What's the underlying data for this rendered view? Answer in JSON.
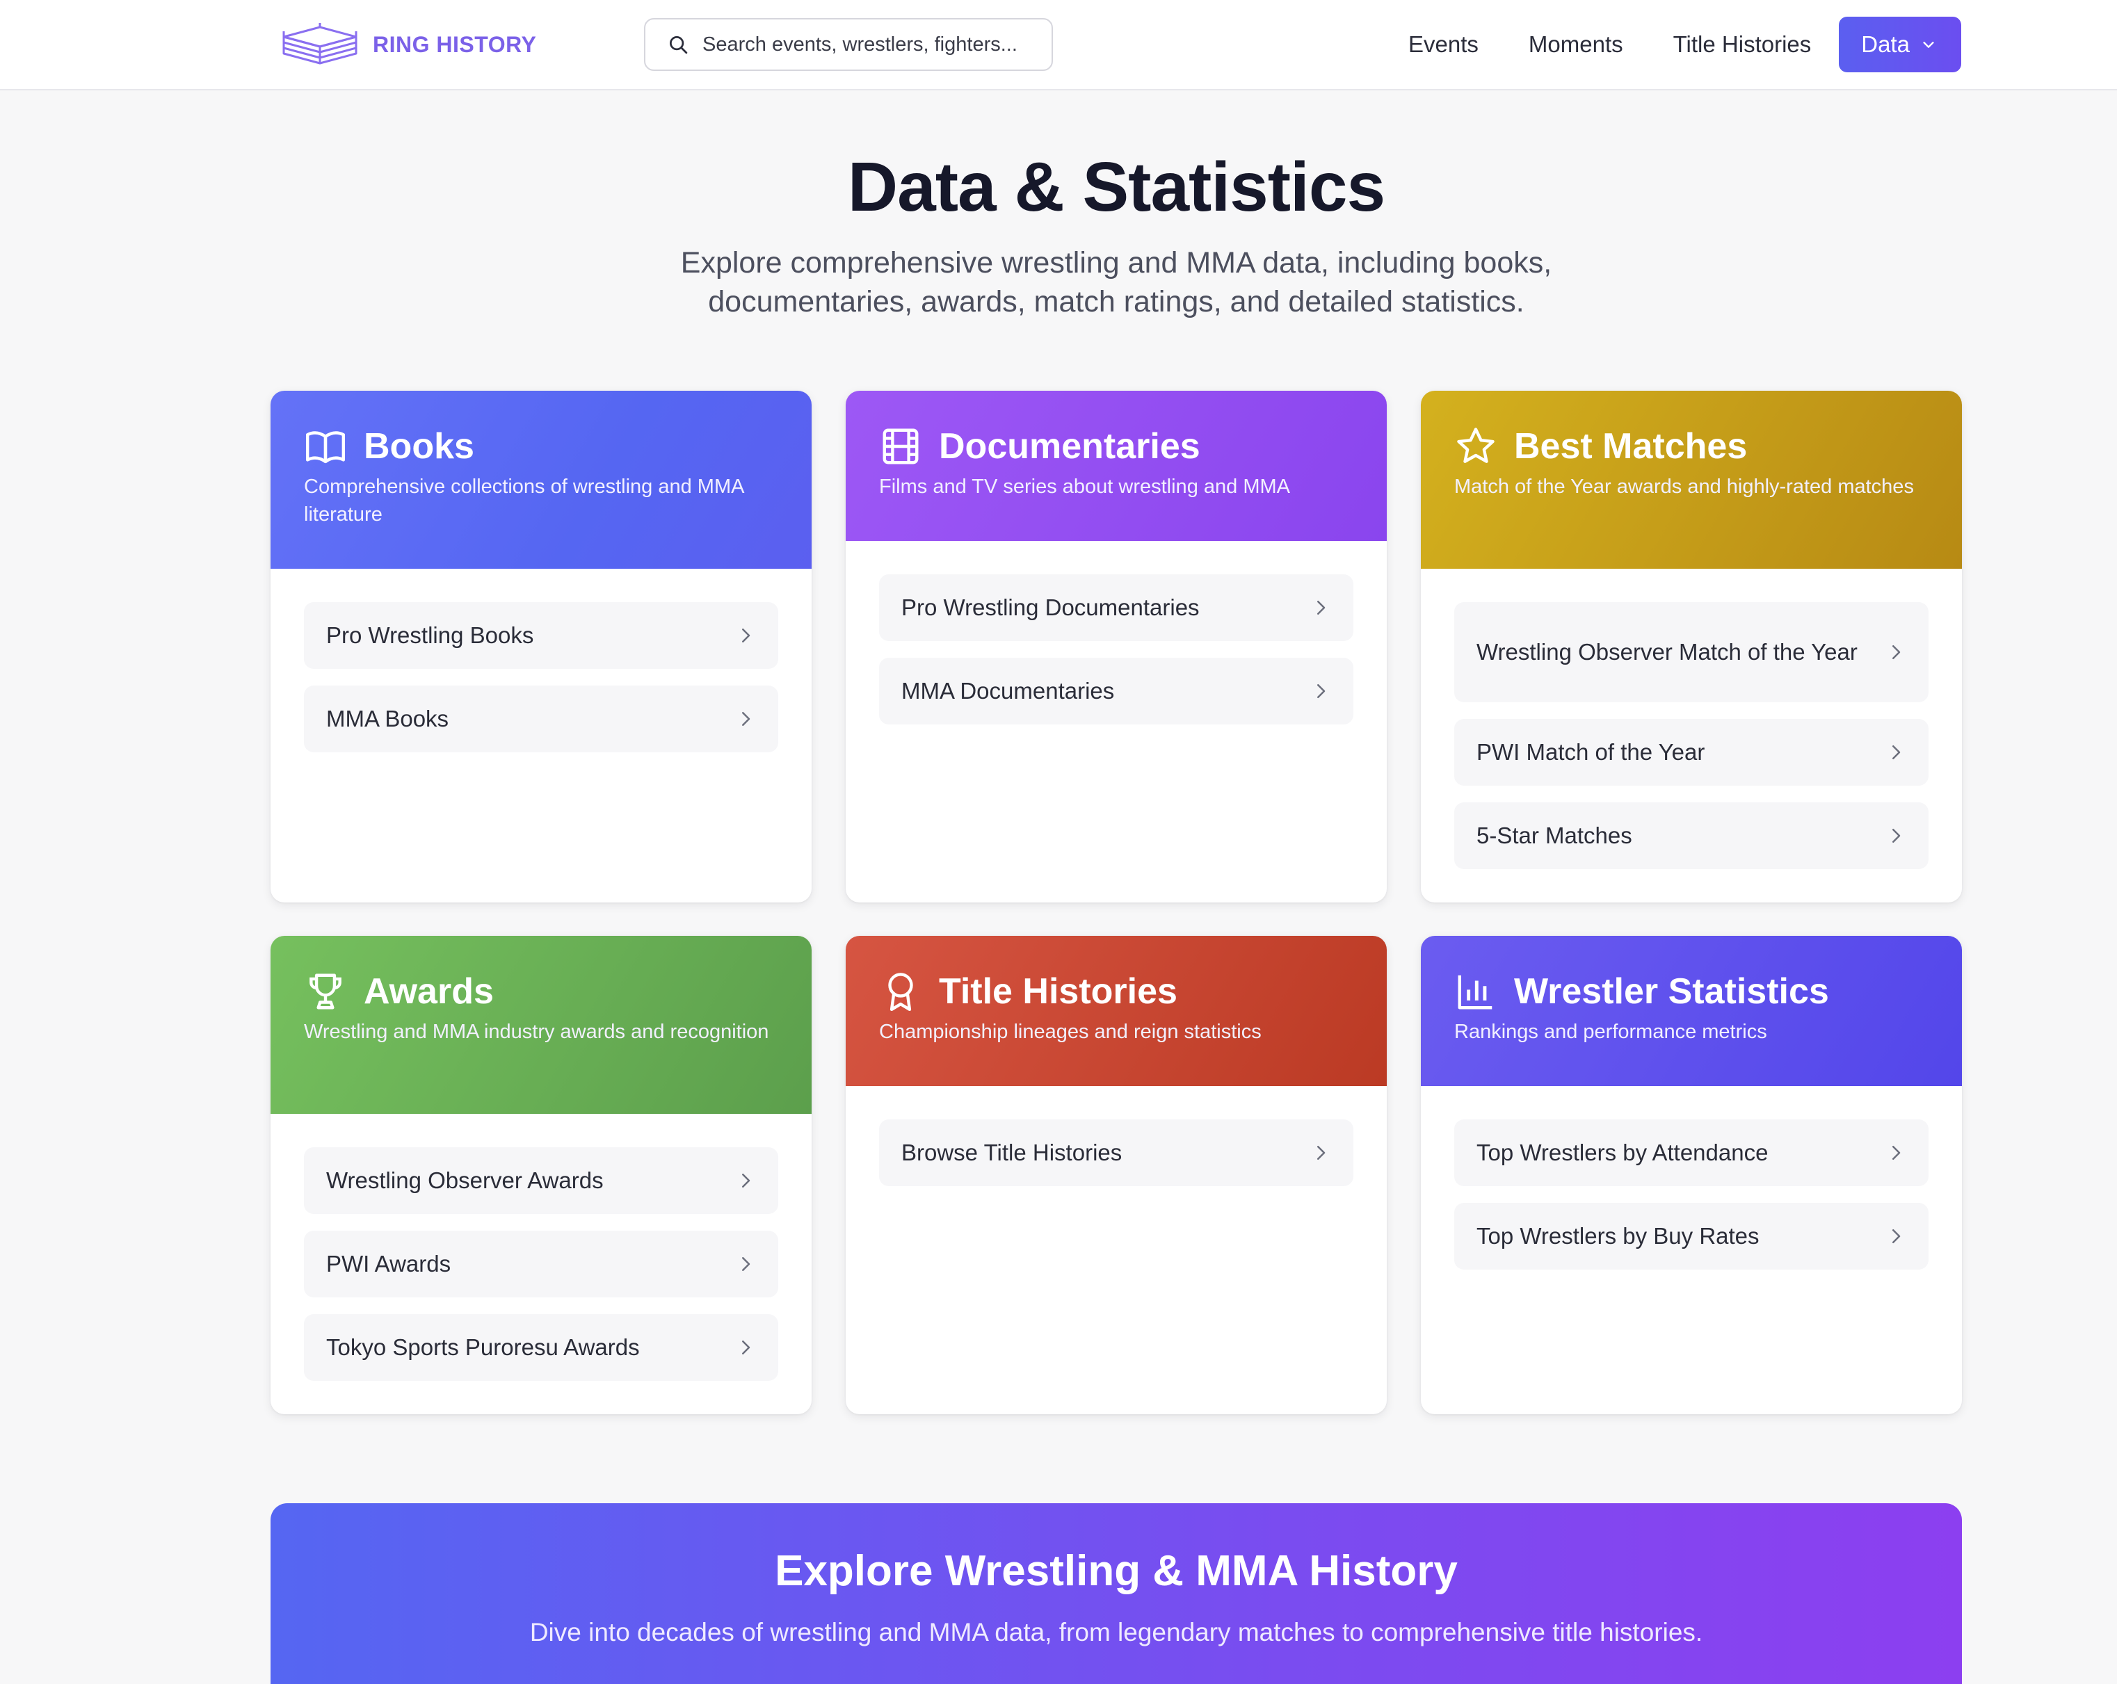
{
  "header": {
    "brand": "RING HISTORY",
    "search_placeholder": "Search events, wrestlers, fighters...",
    "nav": [
      "Events",
      "Moments",
      "Title Histories"
    ],
    "data_button": "Data"
  },
  "hero": {
    "title": "Data & Statistics",
    "subtitle": "Explore comprehensive wrestling and MMA data, including books, documentaries, awards, match ratings, and detailed statistics."
  },
  "cards": [
    {
      "title": "Books",
      "icon": "book-icon",
      "color": "#5b6cf3",
      "description": "Comprehensive collections of wrestling and MMA literature",
      "items": [
        "Pro Wrestling Books",
        "MMA Books"
      ]
    },
    {
      "title": "Documentaries",
      "icon": "film-icon",
      "color": "#9650f3",
      "description": "Films and TV series about wrestling and MMA",
      "items": [
        "Pro Wrestling Documentaries",
        "MMA Documentaries"
      ]
    },
    {
      "title": "Best Matches",
      "icon": "star-icon",
      "color": "#c79e19",
      "description": "Match of the Year awards and highly-rated matches",
      "items": [
        "Wrestling Observer Match of the Year",
        "PWI Match of the Year",
        "5-Star Matches"
      ]
    },
    {
      "title": "Awards",
      "icon": "trophy-icon",
      "color": "#6ab156",
      "description": "Wrestling and MMA industry awards and recognition",
      "items": [
        "Wrestling Observer Awards",
        "PWI Awards",
        "Tokyo Sports Puroresu Awards"
      ]
    },
    {
      "title": "Title Histories",
      "icon": "award-ribbon-icon",
      "color": "#c94732",
      "description": "Championship lineages and reign statistics",
      "items": [
        "Browse Title Histories"
      ]
    },
    {
      "title": "Wrestler Statistics",
      "icon": "bar-chart-icon",
      "color": "#5f52ee",
      "description": "Rankings and performance metrics",
      "items": [
        "Top Wrestlers by Attendance",
        "Top Wrestlers by Buy Rates"
      ]
    }
  ],
  "cta": {
    "title": "Explore Wrestling & MMA History",
    "subtitle": "Dive into decades of wrestling and MMA data, from legendary matches to comprehensive title histories."
  }
}
